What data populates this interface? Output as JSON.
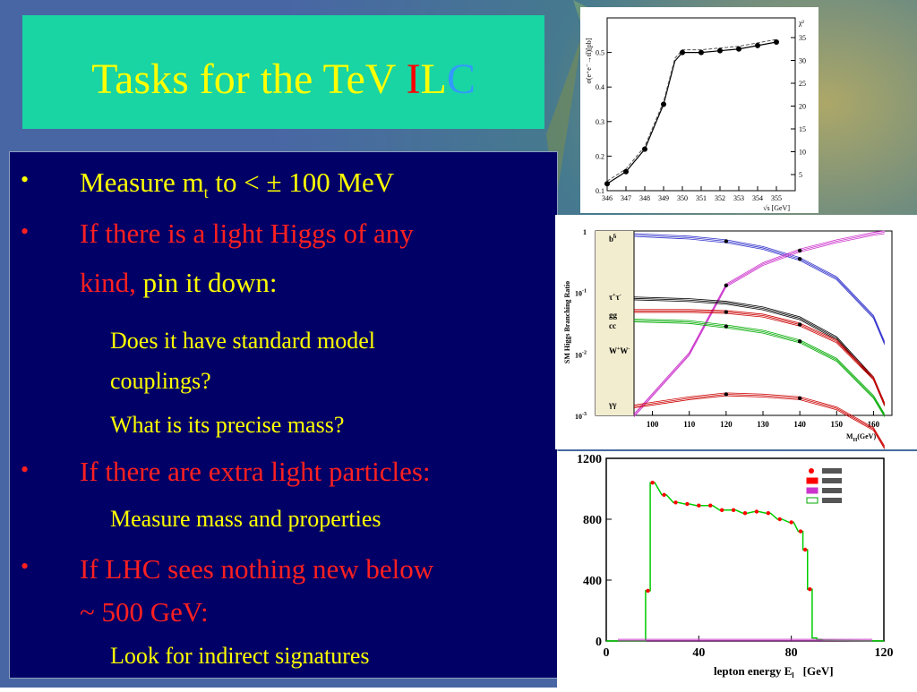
{
  "slide": {
    "title_prefix": "Tasks for the TeV ",
    "title_i": "I",
    "title_l": "L",
    "title_c": "C",
    "bullet_symbol": "•",
    "bullets": [
      {
        "pre": "Measure m",
        "sub": "t",
        "post": " to < ± 100 MeV"
      },
      {
        "text_red": "If there is a light Higgs of any",
        "text_red2": "kind, ",
        "text_yellow": "pin it down:"
      },
      {
        "text": "If there are extra light particles:"
      },
      {
        "text": "If LHC sees nothing new below",
        "text2": "~ 500 GeV:"
      }
    ],
    "subitems": {
      "couplings_1": "Does it have standard model",
      "couplings_2": "couplings?",
      "mass": "What is its precise mass?",
      "measure": "Measure mass and properties",
      "indirect": "Look for indirect signatures"
    },
    "colors": {
      "title_yellow": "#ffff00",
      "title_i": "#ff0000",
      "title_c": "#3399ff",
      "title_bg": "#19d4a3",
      "content_bg": "#000066",
      "red": "#ff2020"
    }
  },
  "chart_data": [
    {
      "type": "line",
      "ylabel": "σ(e⁺e⁻→tt̄)[pb]",
      "xlabel": "√s [GeV]",
      "right_label": "χ²",
      "x": [
        346,
        347,
        348,
        349,
        349.6,
        350,
        351,
        352,
        353,
        354,
        355
      ],
      "values": [
        0.12,
        0.155,
        0.22,
        0.35,
        0.475,
        0.5,
        0.5,
        0.505,
        0.51,
        0.52,
        0.53
      ],
      "xlim": [
        346,
        356
      ],
      "ylim": [
        0.1,
        0.6
      ],
      "xticks": [
        "346",
        "347",
        "348",
        "349",
        "350",
        "351",
        "352",
        "353",
        "354",
        "355"
      ],
      "yticks": [
        "0.1",
        "0.2",
        "0.3",
        "0.4",
        "0.5"
      ],
      "right_ticks": [
        "5",
        "10",
        "15",
        "20",
        "25",
        "30",
        "35"
      ]
    },
    {
      "type": "line",
      "ylabel": "SM Higgs Branching Ratio",
      "xlabel": "M",
      "xlabel_sub": "H",
      "xlabel_unit": "(GeV)",
      "scale": "log",
      "xlim": [
        95,
        165
      ],
      "xticks": [
        "100",
        "110",
        "120",
        "130",
        "140",
        "150",
        "160"
      ],
      "yticks": [
        {
          "base": "1",
          "exp": ""
        },
        {
          "base": "10",
          "exp": "-1"
        },
        {
          "base": "10",
          "exp": "-2"
        },
        {
          "base": "10",
          "exp": "-3"
        }
      ],
      "legend_items": [
        {
          "b": "b",
          "s": "b̄"
        },
        {
          "b": "τ",
          "s": "+",
          "s2": "τ",
          "s3": "-"
        },
        {
          "b": "gg"
        },
        {
          "b": "cc"
        },
        {
          "b": "W",
          "s": "+",
          "s2": "W",
          "s3": "-"
        },
        {
          "b": "γγ"
        }
      ],
      "series": [
        {
          "color": "#3333cc",
          "x": [
            95,
            110,
            120,
            130,
            140,
            150,
            160,
            163
          ],
          "values": [
            0.86,
            0.78,
            0.68,
            0.53,
            0.35,
            0.17,
            0.04,
            0.015
          ]
        },
        {
          "color": "#cc33cc",
          "x": [
            95,
            110,
            120,
            130,
            140,
            150,
            160,
            163
          ],
          "values": [
            0.001,
            0.01,
            0.13,
            0.29,
            0.48,
            0.68,
            0.9,
            0.95
          ]
        },
        {
          "color": "#000000",
          "x": [
            95,
            110,
            120,
            130,
            140,
            150,
            160,
            163
          ],
          "values": [
            0.08,
            0.075,
            0.068,
            0.055,
            0.038,
            0.018,
            0.004,
            0.0015
          ]
        },
        {
          "color": "#cc0000",
          "x": [
            95,
            110,
            120,
            130,
            140,
            150,
            160,
            163
          ],
          "values": [
            0.05,
            0.05,
            0.048,
            0.042,
            0.03,
            0.016,
            0.004,
            0.0015
          ]
        },
        {
          "color": "#00aa00",
          "x": [
            95,
            110,
            120,
            130,
            140,
            150,
            160,
            163
          ],
          "values": [
            0.035,
            0.033,
            0.028,
            0.023,
            0.016,
            0.008,
            0.002,
            0.001
          ]
        },
        {
          "color": "#cc0000",
          "x": [
            95,
            110,
            120,
            130,
            140,
            150,
            160,
            163
          ],
          "values": [
            0.0014,
            0.0019,
            0.0022,
            0.0021,
            0.0019,
            0.0013,
            0.0006,
            0.0003
          ]
        }
      ]
    },
    {
      "type": "line",
      "xlabel": "lepton energy E",
      "xlabel_sub": "l",
      "xlabel_unit": "[GeV]",
      "xlim": [
        0,
        120
      ],
      "ylim": [
        0,
        1200
      ],
      "xticks": [
        "0",
        "40",
        "80",
        "120"
      ],
      "yticks": [
        "0",
        "400",
        "800",
        "1200"
      ],
      "x": [
        18,
        20,
        25,
        30,
        35,
        40,
        45,
        50,
        55,
        60,
        65,
        70,
        75,
        80,
        84,
        86,
        88,
        90,
        92,
        95
      ],
      "values": [
        330,
        1040,
        960,
        910,
        900,
        890,
        890,
        860,
        860,
        840,
        850,
        840,
        800,
        780,
        720,
        600,
        340,
        20,
        10,
        5
      ],
      "legend_colors": [
        "#ff0000",
        "#ff0000",
        "#cc33cc",
        "#00aa00"
      ]
    }
  ]
}
